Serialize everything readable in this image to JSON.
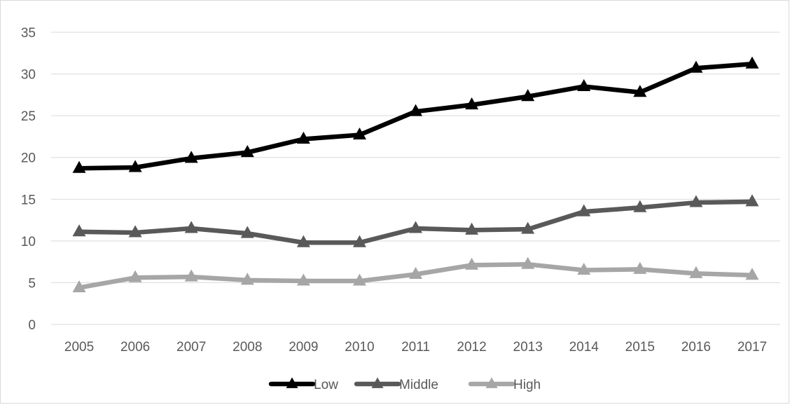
{
  "chart_data": {
    "type": "line",
    "title": "",
    "xlabel": "",
    "ylabel": "",
    "categories": [
      "2005",
      "2006",
      "2007",
      "2008",
      "2009",
      "2010",
      "2011",
      "2012",
      "2013",
      "2014",
      "2015",
      "2016",
      "2017"
    ],
    "ylim": [
      0,
      35
    ],
    "yticks": [
      0,
      5,
      10,
      15,
      20,
      25,
      30,
      35
    ],
    "grid": true,
    "legend_position": "bottom",
    "marker": "triangle",
    "series": [
      {
        "name": "Low",
        "color": "#000000",
        "values": [
          18.7,
          18.8,
          19.9,
          20.6,
          22.2,
          22.7,
          25.5,
          26.3,
          27.3,
          28.5,
          27.8,
          30.7,
          31.2
        ]
      },
      {
        "name": "Middle",
        "color": "#595959",
        "values": [
          11.1,
          11.0,
          11.5,
          10.9,
          9.8,
          9.8,
          11.5,
          11.3,
          11.4,
          13.5,
          14.0,
          14.6,
          14.7
        ]
      },
      {
        "name": "High",
        "color": "#a6a6a6",
        "values": [
          4.4,
          5.6,
          5.7,
          5.3,
          5.2,
          5.2,
          6.0,
          7.1,
          7.2,
          6.5,
          6.6,
          6.1,
          5.9
        ]
      }
    ]
  }
}
